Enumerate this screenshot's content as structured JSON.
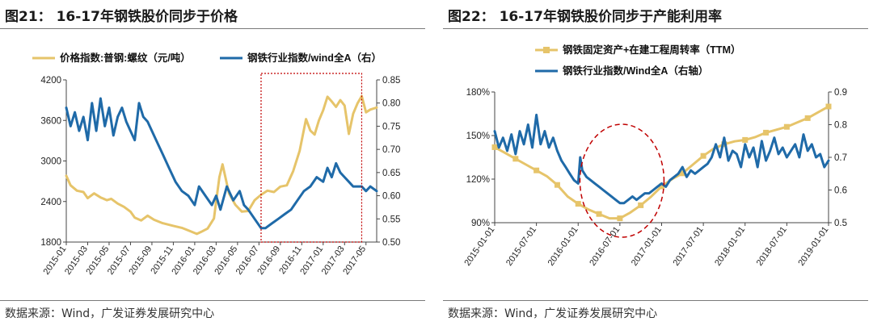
{
  "colors": {
    "gold": "#e6c46a",
    "blue": "#1f6aa8",
    "frame": "#c00000",
    "axis": "#444444"
  },
  "chart_data": [
    {
      "type": "line",
      "title": "图21：  16-17年钢铁股价同步于价格",
      "source": "数据来源：Wind，广发证券发展研究中心",
      "x_ticks": [
        "2015-01",
        "2015-03",
        "2015-05",
        "2015-07",
        "2015-09",
        "2015-11",
        "2016-01",
        "2016-03",
        "2016-05",
        "2016-07",
        "2016-09",
        "2016-11",
        "2017-01",
        "2017-03",
        "2017-05"
      ],
      "y_left": {
        "ticks": [
          "4200",
          "3600",
          "3000",
          "2400",
          "1800"
        ],
        "range": [
          1800,
          4200
        ]
      },
      "y_right": {
        "ticks": [
          "0.85",
          "0.80",
          "0.75",
          "0.70",
          "0.65",
          "0.60",
          "0.55",
          "0.50"
        ],
        "range": [
          0.5,
          0.85
        ]
      },
      "annotation": "dotted red box from 2016-07 to 2017-04",
      "series": [
        {
          "name": "价格指数:普钢:螺纹（元/吨）",
          "axis": "left",
          "color": "gold",
          "x": [
            0,
            0.2,
            0.5,
            0.8,
            1.0,
            1.3,
            1.6,
            1.9,
            2.1,
            2.4,
            2.7,
            3.0,
            3.2,
            3.5,
            3.8,
            4.1,
            4.5,
            5.0,
            5.4,
            5.8,
            6.1,
            6.3,
            6.6,
            6.9,
            7.0,
            7.15,
            7.3,
            7.6,
            7.9,
            8.2,
            8.5,
            8.8,
            9.1,
            9.4,
            9.7,
            10.0,
            10.3,
            10.6,
            10.9,
            11.2,
            11.4,
            11.6,
            11.8,
            12.0,
            12.2,
            12.4,
            12.6,
            12.8,
            13.0,
            13.2,
            13.4,
            13.6,
            13.8,
            14.0,
            14.2,
            14.5
          ],
          "y": [
            2780,
            2640,
            2560,
            2540,
            2450,
            2520,
            2460,
            2420,
            2440,
            2370,
            2320,
            2250,
            2160,
            2120,
            2190,
            2130,
            2080,
            2040,
            2010,
            1960,
            1920,
            1950,
            2000,
            2150,
            2400,
            2760,
            2950,
            2520,
            2350,
            2250,
            2260,
            2420,
            2500,
            2560,
            2540,
            2620,
            2640,
            2850,
            3150,
            3620,
            3450,
            3390,
            3600,
            3750,
            3950,
            3880,
            3800,
            3900,
            3820,
            3400,
            3700,
            3850,
            3960,
            3720,
            3760,
            3790
          ]
        },
        {
          "name": "钢铁行业指数/wind全A（右）",
          "axis": "right",
          "color": "blue",
          "x": [
            0,
            0.2,
            0.4,
            0.6,
            0.8,
            1.0,
            1.2,
            1.4,
            1.6,
            1.8,
            2.0,
            2.2,
            2.4,
            2.6,
            2.8,
            3.0,
            3.2,
            3.4,
            3.6,
            3.8,
            4.0,
            4.2,
            4.5,
            4.8,
            5.1,
            5.4,
            5.7,
            6.0,
            6.2,
            6.5,
            6.8,
            7.0,
            7.2,
            7.5,
            7.8,
            8.1,
            8.3,
            8.5,
            8.8,
            9.1,
            9.3,
            9.6,
            9.9,
            10.2,
            10.5,
            10.8,
            11.1,
            11.4,
            11.7,
            12.0,
            12.2,
            12.4,
            12.6,
            12.8,
            13.0,
            13.2,
            13.4,
            13.6,
            13.8,
            14.0,
            14.2,
            14.5
          ],
          "y": [
            0.79,
            0.75,
            0.78,
            0.74,
            0.77,
            0.72,
            0.8,
            0.74,
            0.81,
            0.75,
            0.79,
            0.73,
            0.77,
            0.79,
            0.76,
            0.74,
            0.72,
            0.8,
            0.77,
            0.76,
            0.74,
            0.72,
            0.69,
            0.66,
            0.63,
            0.61,
            0.6,
            0.58,
            0.62,
            0.6,
            0.58,
            0.6,
            0.57,
            0.62,
            0.59,
            0.61,
            0.58,
            0.57,
            0.55,
            0.53,
            0.53,
            0.54,
            0.55,
            0.56,
            0.57,
            0.59,
            0.61,
            0.62,
            0.64,
            0.63,
            0.66,
            0.64,
            0.67,
            0.65,
            0.64,
            0.63,
            0.62,
            0.62,
            0.62,
            0.61,
            0.62,
            0.61
          ]
        }
      ]
    },
    {
      "type": "line",
      "title": "图22：  16-17年钢铁股价同步于产能利用率",
      "source": "数据来源：Wind，广发证券发展研究中心",
      "x_ticks": [
        "2015-01-01",
        "2015-07-01",
        "2016-01-01",
        "2016-07-01",
        "2017-01-01",
        "2017-07-01",
        "2018-01-01",
        "2018-07-01",
        "2019-01-01"
      ],
      "y_left": {
        "ticks": [
          "180%",
          "150%",
          "120%",
          "90%"
        ],
        "range": [
          0.9,
          1.8
        ]
      },
      "y_right": {
        "ticks": [
          "0.9",
          "0.8",
          "0.7",
          "0.6",
          "0.5"
        ],
        "range": [
          0.5,
          0.9
        ]
      },
      "annotation": "dashed red ellipse around 2016-01 to 2017-01 trough",
      "series": [
        {
          "name": "钢铁固定资产+在建工程周转率（TTM）",
          "axis": "left",
          "color": "gold",
          "marker": "square",
          "x": [
            0,
            0.25,
            0.5,
            0.75,
            1.0,
            1.25,
            1.5,
            1.75,
            2.0,
            2.25,
            2.5,
            2.75,
            3.0,
            3.25,
            3.5,
            3.75,
            4.0,
            4.25,
            4.5,
            4.75,
            5.0,
            5.25,
            5.5,
            5.75,
            6.0,
            6.25,
            6.5,
            6.75,
            7.0,
            7.25,
            7.5,
            7.75,
            8.0
          ],
          "y": [
            1.42,
            1.38,
            1.34,
            1.3,
            1.26,
            1.22,
            1.16,
            1.08,
            1.03,
            0.99,
            0.96,
            0.93,
            0.93,
            0.97,
            1.02,
            1.08,
            1.15,
            1.2,
            1.24,
            1.3,
            1.36,
            1.41,
            1.44,
            1.46,
            1.47,
            1.49,
            1.52,
            1.54,
            1.56,
            1.59,
            1.62,
            1.66,
            1.7
          ]
        },
        {
          "name": "钢铁行业指数/Wind全A（右轴）",
          "axis": "right",
          "color": "blue",
          "x": [
            0,
            0.1,
            0.2,
            0.3,
            0.4,
            0.5,
            0.6,
            0.7,
            0.8,
            0.9,
            1.0,
            1.1,
            1.2,
            1.3,
            1.4,
            1.5,
            1.6,
            1.7,
            1.8,
            1.9,
            2.0,
            2.05,
            2.1,
            2.2,
            2.3,
            2.4,
            2.5,
            2.6,
            2.7,
            2.8,
            2.9,
            3.0,
            3.1,
            3.2,
            3.3,
            3.4,
            3.5,
            3.6,
            3.7,
            3.8,
            3.9,
            4.0,
            4.1,
            4.2,
            4.3,
            4.4,
            4.5,
            4.6,
            4.7,
            4.8,
            4.9,
            5.0,
            5.1,
            5.2,
            5.3,
            5.4,
            5.5,
            5.6,
            5.7,
            5.8,
            5.9,
            6.0,
            6.1,
            6.2,
            6.3,
            6.4,
            6.5,
            6.6,
            6.7,
            6.8,
            6.9,
            7.0,
            7.1,
            7.2,
            7.3,
            7.4,
            7.5,
            7.6,
            7.7,
            7.8,
            7.9,
            8.0
          ],
          "y": [
            0.78,
            0.73,
            0.76,
            0.72,
            0.77,
            0.71,
            0.78,
            0.74,
            0.8,
            0.73,
            0.83,
            0.74,
            0.78,
            0.73,
            0.76,
            0.72,
            0.69,
            0.67,
            0.65,
            0.63,
            0.62,
            0.7,
            0.66,
            0.64,
            0.63,
            0.62,
            0.61,
            0.6,
            0.59,
            0.58,
            0.57,
            0.56,
            0.56,
            0.57,
            0.58,
            0.57,
            0.58,
            0.59,
            0.59,
            0.6,
            0.61,
            0.62,
            0.61,
            0.63,
            0.64,
            0.65,
            0.67,
            0.64,
            0.66,
            0.65,
            0.66,
            0.67,
            0.68,
            0.7,
            0.74,
            0.7,
            0.76,
            0.69,
            0.72,
            0.71,
            0.67,
            0.74,
            0.7,
            0.73,
            0.67,
            0.75,
            0.69,
            0.72,
            0.76,
            0.71,
            0.73,
            0.7,
            0.72,
            0.74,
            0.7,
            0.77,
            0.72,
            0.74,
            0.7,
            0.71,
            0.67,
            0.69
          ]
        }
      ]
    }
  ]
}
